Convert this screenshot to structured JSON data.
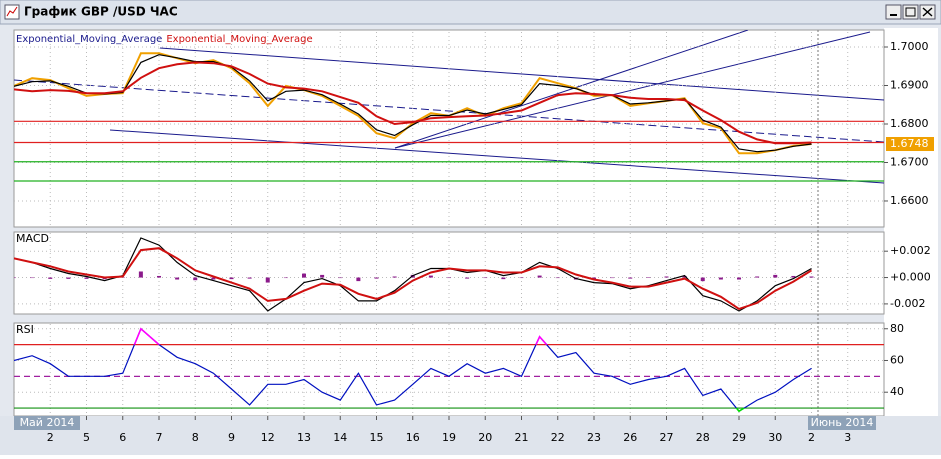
{
  "window": {
    "title": "График GBP /USD  ЧАС"
  },
  "chart_data": [
    {
      "type": "line",
      "title": null,
      "ylim": [
        1.6535,
        1.7039
      ],
      "yticks": [
        {
          "value": 1.66,
          "label": "1.6600"
        },
        {
          "value": 1.67,
          "label": "1.6700"
        },
        {
          "value": 1.68,
          "label": "1.6800"
        },
        {
          "value": 1.69,
          "label": "1.6900"
        },
        {
          "value": 1.7,
          "label": "1.7000"
        }
      ],
      "grid": true,
      "levels": [
        {
          "value": 1.6807,
          "color": "#e02020"
        },
        {
          "value": 1.6752,
          "color": "#e02020"
        },
        {
          "value": 1.6702,
          "color": "#20b020"
        },
        {
          "value": 1.6652,
          "color": "#20b020"
        }
      ],
      "series": [
        {
          "color": "#f0a000",
          "values": [
            1.6899,
            1.6919,
            1.6914,
            1.6893,
            1.6873,
            1.6878,
            1.688,
            1.6984,
            1.6984,
            1.6971,
            1.6958,
            1.6966,
            1.6945,
            1.6906,
            1.6847,
            1.6899,
            1.6888,
            1.6873,
            1.6847,
            1.6821,
            1.6776,
            1.6763,
            1.6802,
            1.6828,
            1.6821,
            1.6841,
            1.6821,
            1.6841,
            1.6854,
            1.6919,
            1.6906,
            1.6893,
            1.6873,
            1.6875,
            1.6847,
            1.6854,
            1.686,
            1.6867,
            1.6802,
            1.6789,
            1.6724,
            1.6724,
            1.6732,
            1.6743,
            1.6748,
            null,
            null,
            null
          ]
        },
        {
          "name": "Exponential_Moving_Average",
          "color": "#000000",
          "values": [
            1.6898,
            1.691,
            1.6912,
            1.6898,
            1.688,
            1.6878,
            1.6882,
            1.696,
            1.698,
            1.6972,
            1.6962,
            1.6962,
            1.6948,
            1.6912,
            1.686,
            1.6885,
            1.6888,
            1.6876,
            1.6852,
            1.6826,
            1.6785,
            1.677,
            1.6798,
            1.6822,
            1.6822,
            1.6836,
            1.6826,
            1.6838,
            1.685,
            1.6905,
            1.69,
            1.6892,
            1.6876,
            1.6875,
            1.6852,
            1.6855,
            1.686,
            1.6865,
            1.681,
            1.6792,
            1.6735,
            1.6728,
            1.6732,
            1.6742,
            1.6748,
            null,
            null,
            null
          ]
        },
        {
          "name": "Exponential_Moving_Average",
          "color": "#d01010",
          "values": [
            1.689,
            1.6885,
            1.6888,
            1.6886,
            1.688,
            1.688,
            1.6885,
            1.692,
            1.6945,
            1.6955,
            1.696,
            1.6958,
            1.695,
            1.693,
            1.6905,
            1.6895,
            1.6892,
            1.6885,
            1.687,
            1.6855,
            1.682,
            1.68,
            1.6805,
            1.6815,
            1.6818,
            1.682,
            1.6822,
            1.6828,
            1.6835,
            1.6855,
            1.6875,
            1.688,
            1.6878,
            1.6875,
            1.6868,
            1.6865,
            1.6865,
            1.6862,
            1.6835,
            1.681,
            1.678,
            1.676,
            1.675,
            1.675,
            1.6752,
            null,
            null,
            null
          ]
        }
      ]
    },
    {
      "type": "line",
      "title": "MACD",
      "ylim": [
        -0.00269,
        0.00338
      ],
      "yticks": [
        {
          "value": -0.002,
          "label": "-0.002"
        },
        {
          "value": 0,
          "label": "+0.000"
        },
        {
          "value": 0.002,
          "label": "+0.002"
        }
      ],
      "grid": true,
      "series": [
        {
          "color": "#8b1a8b",
          "style": "bar",
          "values": [
            0,
            0,
            -0.0001,
            -0.0001,
            -0.0001,
            -0.00012,
            4e-05,
            0.00046,
            0.00012,
            -0.00015,
            -0.0002,
            -0.00015,
            -0.00012,
            -8e-05,
            -0.00038,
            0,
            0.0003,
            0.0002,
            -4e-05,
            -0.00027,
            -8e-05,
            8e-05,
            0.0002,
            0.00015,
            0,
            -8e-05,
            0,
            -0.00012,
            0,
            0.00015,
            -4e-05,
            -0.00015,
            -0.00012,
            -4e-05,
            -8e-05,
            4e-05,
            8e-05,
            0.00012,
            -0.00027,
            -0.00015,
            -0.00015,
            8e-05,
            0.0002,
            0.00012,
            8e-05,
            null,
            null,
            null
          ]
        },
        {
          "color": "#000000",
          "values": [
            0.00146,
            0.00115,
            0.00069,
            0.00031,
            8e-05,
            -0.00023,
            0.00015,
            0.003,
            0.00246,
            0.00115,
            0.00015,
            -0.00023,
            -0.00062,
            -0.001,
            -0.00254,
            -0.00162,
            -0.00038,
            -8e-05,
            -0.00062,
            -0.00177,
            -0.00177,
            -0.001,
            0.00015,
            0.00069,
            0.00069,
            0.00038,
            0.00054,
            0.00015,
            0.00038,
            0.00115,
            0.00069,
            -8e-05,
            -0.00038,
            -0.00046,
            -0.00085,
            -0.00062,
            -0.00023,
            0.00015,
            -0.00138,
            -0.00177,
            -0.00254,
            -0.00177,
            -0.00062,
            -8e-05,
            0.00069,
            null,
            null,
            null
          ]
        },
        {
          "color": "#d01010",
          "values": [
            0.00146,
            0.00115,
            0.00085,
            0.00046,
            0.00023,
            0,
            8e-05,
            0.00208,
            0.00223,
            0.00146,
            0.00054,
            8e-05,
            -0.00038,
            -0.00085,
            -0.00177,
            -0.00162,
            -0.001,
            -0.00046,
            -0.00054,
            -0.00123,
            -0.00162,
            -0.00115,
            -0.00023,
            0.00038,
            0.00069,
            0.00054,
            0.00054,
            0.00038,
            0.00038,
            0.00085,
            0.00077,
            0.00023,
            -0.00015,
            -0.00038,
            -0.00069,
            -0.00069,
            -0.00038,
            -8e-05,
            -0.00085,
            -0.00146,
            -0.00238,
            -0.00192,
            -0.001,
            -0.00031,
            0.00054,
            null,
            null,
            null
          ]
        }
      ]
    },
    {
      "type": "line",
      "title": "RSI",
      "ylim": [
        25,
        83
      ],
      "yticks": [
        40,
        60,
        80
      ],
      "grid": true,
      "levels": [
        {
          "value": 70,
          "color": "#e02020"
        },
        {
          "value": 50,
          "color": "#a020a0",
          "dash": true
        },
        {
          "value": 30,
          "color": "#109010"
        }
      ],
      "overbought_color": "#ff00ff",
      "oversold_color": "#00e000",
      "categories": [
        null,
        null,
        "2",
        null,
        "5",
        null,
        "6",
        null,
        "7",
        null,
        "8",
        null,
        "9",
        null,
        "12",
        null,
        "13",
        null,
        "14",
        null,
        "15",
        null,
        "16",
        null,
        "19",
        null,
        "20",
        null,
        "21",
        null,
        "22",
        null,
        "23",
        null,
        "26",
        null,
        "27",
        null,
        "28",
        null,
        "29",
        null,
        "30",
        null,
        "2",
        null,
        "3",
        null
      ],
      "month_labels": [
        "Май 2014",
        "Июнь 2014"
      ],
      "series": [
        {
          "color": "#0010c0",
          "values": [
            60,
            63,
            58,
            50,
            50,
            50,
            52,
            80,
            70,
            62,
            58,
            52,
            42,
            32,
            45,
            45,
            48,
            40,
            35,
            52,
            32,
            35,
            45,
            55,
            50,
            58,
            52,
            55,
            50,
            75,
            62,
            65,
            52,
            50,
            45,
            48,
            50,
            55,
            38,
            42,
            28,
            35,
            40,
            48,
            55,
            null,
            null,
            null
          ]
        }
      ]
    }
  ]
}
